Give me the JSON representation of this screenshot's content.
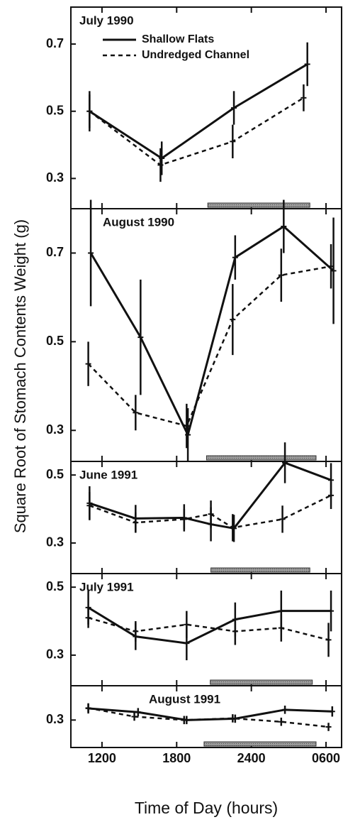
{
  "chart_data": [
    {
      "type": "line",
      "title": "July 1990",
      "ylabel": "Square Root of Stomach Contents Weight (g)",
      "xlim": [
        9.5,
        31.25
      ],
      "ylim": [
        0.21,
        0.81
      ],
      "yticks": [
        0.3,
        0.5,
        0.7
      ],
      "night": [
        20.5,
        28.7
      ],
      "legend": "upper left",
      "series": [
        {
          "name": "Shallow Flats",
          "color": "#111111",
          "linestyle": "solid",
          "x": [
            11.0,
            16.8,
            22.6,
            28.5
          ],
          "values": [
            0.5,
            0.36,
            0.51,
            0.64
          ],
          "errors": [
            0.06,
            0.05,
            0.05,
            0.065
          ]
        },
        {
          "name": "Undredged Channel",
          "color": "#111111",
          "linestyle": "dashed",
          "x": [
            11.0,
            16.7,
            22.5,
            28.2
          ],
          "values": [
            0.5,
            0.34,
            0.41,
            0.54
          ],
          "errors": [
            0.05,
            0.05,
            0.05,
            0.04
          ]
        }
      ]
    },
    {
      "type": "line",
      "title": "August 1990",
      "xlim": [
        9.5,
        31.25
      ],
      "ylim": [
        0.23,
        0.8
      ],
      "yticks": [
        0.3,
        0.5,
        0.7
      ],
      "night": [
        20.4,
        29.2
      ],
      "series": [
        {
          "color": "#111111",
          "linestyle": "solid",
          "x": [
            11.1,
            15.1,
            18.9,
            22.7,
            26.6,
            30.6
          ],
          "values": [
            0.7,
            0.51,
            0.29,
            0.69,
            0.76,
            0.66
          ],
          "errors": [
            0.12,
            0.13,
            0.06,
            0.05,
            0.06,
            0.12
          ]
        },
        {
          "color": "#111111",
          "linestyle": "dashed",
          "x": [
            10.9,
            14.7,
            18.8,
            22.5,
            26.4,
            30.4
          ],
          "values": [
            0.45,
            0.34,
            0.31,
            0.55,
            0.65,
            0.67
          ],
          "errors": [
            0.05,
            0.04,
            0.05,
            0.08,
            0.06,
            0.05
          ]
        }
      ]
    },
    {
      "type": "line",
      "title": "June 1991",
      "xlim": [
        9.5,
        31.25
      ],
      "ylim": [
        0.21,
        0.54
      ],
      "yticks": [
        0.3,
        0.5
      ],
      "night": [
        20.75,
        28.7
      ],
      "series": [
        {
          "color": "#111111",
          "linestyle": "solid",
          "x": [
            11.0,
            14.7,
            18.6,
            20.75,
            22.6,
            26.7,
            30.4
          ],
          "values": [
            0.417,
            0.372,
            0.374,
            0.355,
            0.343,
            0.536,
            0.485
          ],
          "errors": [
            0.05,
            0.04,
            0.04,
            0.05,
            0.04,
            0.06,
            0.05
          ]
        },
        {
          "color": "#111111",
          "linestyle": "dashed",
          "x": [
            11.0,
            14.7,
            18.6,
            20.75,
            22.5,
            26.5,
            30.4
          ],
          "values": [
            0.41,
            0.36,
            0.37,
            0.385,
            0.345,
            0.37,
            0.44
          ],
          "errors": [
            0.04,
            0.03,
            0.03,
            0.04,
            0.04,
            0.04,
            0.04
          ]
        }
      ]
    },
    {
      "type": "line",
      "title": "July 1991",
      "xlim": [
        9.5,
        31.25
      ],
      "ylim": [
        0.21,
        0.54
      ],
      "yticks": [
        0.3,
        0.5
      ],
      "night": [
        20.7,
        28.9
      ],
      "series": [
        {
          "color": "#111111",
          "linestyle": "solid",
          "x": [
            10.9,
            14.7,
            18.8,
            22.7,
            26.4,
            30.4
          ],
          "values": [
            0.44,
            0.355,
            0.335,
            0.405,
            0.43,
            0.43
          ],
          "errors": [
            0.05,
            0.04,
            0.05,
            0.05,
            0.06,
            0.06
          ]
        },
        {
          "color": "#111111",
          "linestyle": "dashed",
          "x": [
            10.9,
            14.7,
            18.8,
            22.7,
            26.4,
            30.2
          ],
          "values": [
            0.41,
            0.37,
            0.39,
            0.37,
            0.38,
            0.345
          ],
          "errors": [
            0.03,
            0.03,
            0.04,
            0.04,
            0.04,
            0.05
          ]
        }
      ]
    },
    {
      "type": "line",
      "title": "August 1991",
      "xlabel": "Time of Day (hours)",
      "xlim": [
        9.5,
        31.25
      ],
      "ylim": [
        0.22,
        0.4
      ],
      "yticks": [
        0.3
      ],
      "xticks": [
        {
          "value": 12,
          "label": "1200"
        },
        {
          "value": 18,
          "label": "1800"
        },
        {
          "value": 24,
          "label": "2400"
        },
        {
          "value": 30,
          "label": "0600"
        }
      ],
      "night": [
        20.2,
        29.2
      ],
      "series": [
        {
          "color": "#111111",
          "linestyle": "solid",
          "x": [
            10.9,
            14.9,
            18.8,
            22.7,
            26.7,
            30.5
          ],
          "values": [
            0.334,
            0.323,
            0.3,
            0.304,
            0.33,
            0.325
          ],
          "errors": [
            0.015,
            0.012,
            0.012,
            0.012,
            0.012,
            0.015
          ]
        },
        {
          "color": "#111111",
          "linestyle": "dashed",
          "x": [
            10.9,
            14.6,
            18.6,
            22.5,
            26.4,
            30.2
          ],
          "values": [
            0.335,
            0.31,
            0.3,
            0.305,
            0.295,
            0.28
          ],
          "errors": [
            0.012,
            0.012,
            0.012,
            0.012,
            0.012,
            0.012
          ]
        }
      ]
    }
  ]
}
